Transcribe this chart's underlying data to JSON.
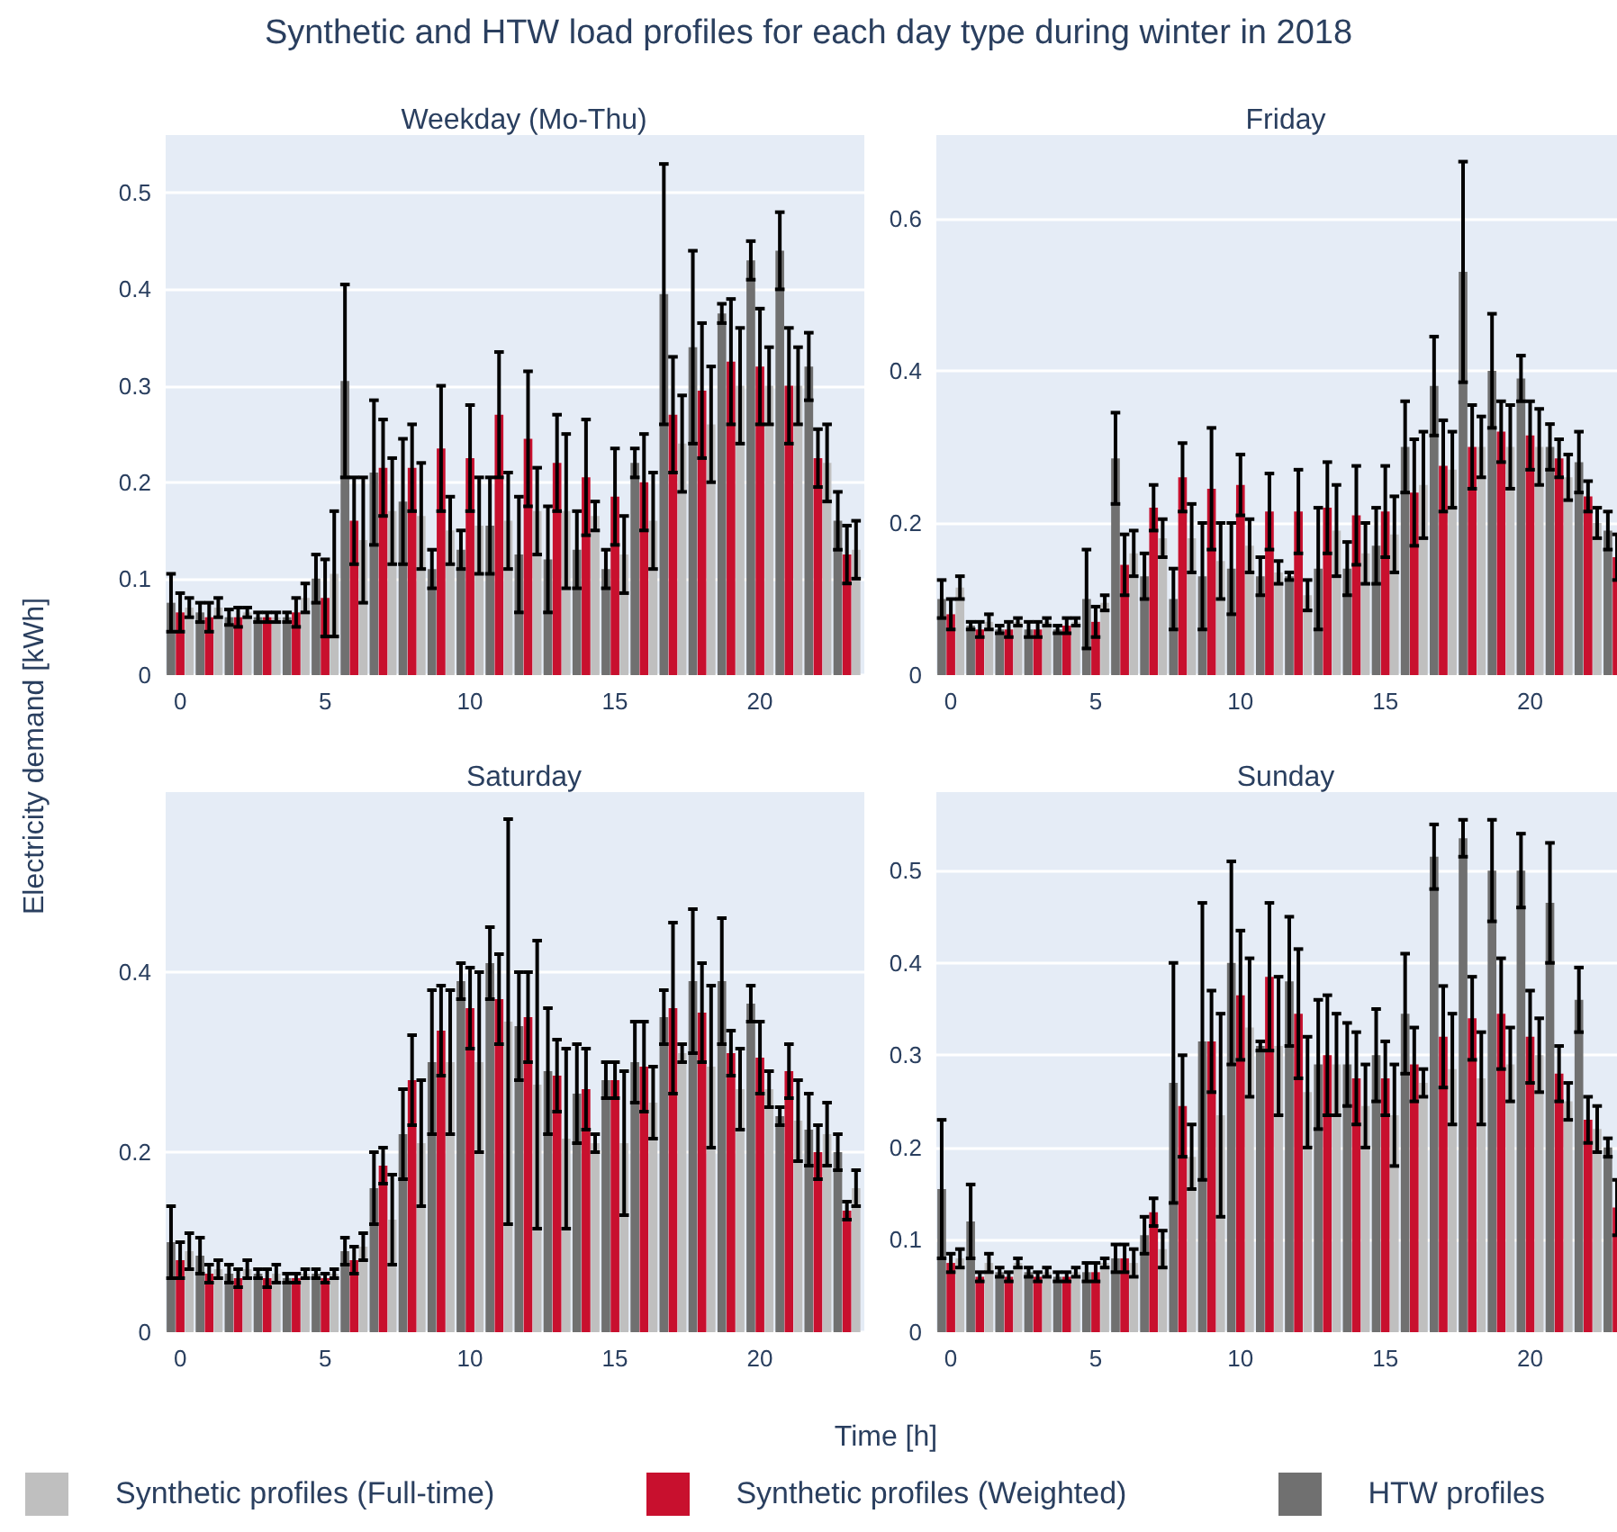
{
  "chart_data": [
    {
      "type": "bar",
      "title": "Weekday (Mo-Thu)",
      "annotations": [
        "Synthetic and HTW load profiles for each day type during winter in 2018"
      ],
      "ylabel": "Electricity demand [kWh]",
      "legend": "bottom",
      "grid": "y",
      "x": [
        0,
        1,
        2,
        3,
        4,
        5,
        6,
        7,
        8,
        9,
        10,
        11,
        12,
        13,
        14,
        15,
        16,
        17,
        18,
        19,
        20,
        21,
        22,
        23
      ],
      "xlim": [
        -0.5,
        23.6
      ],
      "xticks": [
        0,
        5,
        10,
        15,
        20
      ],
      "ylim": [
        0,
        0.56
      ],
      "yticks": [
        0,
        0.1,
        0.2,
        0.3,
        0.4,
        0.5
      ],
      "series": [
        {
          "name": "Synthetic profiles (Full-time)",
          "color": "#bfbfbf",
          "values": [
            0.07,
            0.07,
            0.065,
            0.06,
            0.08,
            0.105,
            0.14,
            0.17,
            0.165,
            0.15,
            0.155,
            0.16,
            0.17,
            0.17,
            0.165,
            0.125,
            0.16,
            0.24,
            0.26,
            0.3,
            0.3,
            0.3,
            0.22,
            0.13
          ],
          "errors": [
            0.01,
            0.01,
            0.005,
            0.005,
            0.015,
            0.065,
            0.065,
            0.055,
            0.055,
            0.035,
            0.05,
            0.05,
            0.045,
            0.08,
            0.015,
            0.04,
            0.05,
            0.05,
            0.06,
            0.06,
            0.04,
            0.04,
            0.04,
            0.03
          ]
        },
        {
          "name": "Synthetic profiles (Weighted)",
          "color": "#c8102e",
          "values": [
            0.065,
            0.06,
            0.06,
            0.06,
            0.065,
            0.08,
            0.16,
            0.215,
            0.215,
            0.235,
            0.225,
            0.27,
            0.245,
            0.22,
            0.205,
            0.185,
            0.2,
            0.27,
            0.295,
            0.325,
            0.32,
            0.3,
            0.225,
            0.125
          ],
          "errors": [
            0.02,
            0.015,
            0.01,
            0.005,
            0.015,
            0.04,
            0.045,
            0.05,
            0.045,
            0.065,
            0.055,
            0.065,
            0.07,
            0.05,
            0.06,
            0.05,
            0.05,
            0.06,
            0.07,
            0.065,
            0.06,
            0.06,
            0.03,
            0.03
          ]
        },
        {
          "name": "HTW profiles",
          "color": "#707070",
          "values": [
            0.075,
            0.065,
            0.06,
            0.06,
            0.06,
            0.1,
            0.305,
            0.21,
            0.18,
            0.11,
            0.13,
            0.155,
            0.125,
            0.12,
            0.13,
            0.11,
            0.22,
            0.395,
            0.34,
            0.375,
            0.43,
            0.44,
            0.32,
            0.16
          ],
          "errors": [
            0.03,
            0.01,
            0.008,
            0.005,
            0.005,
            0.025,
            0.1,
            0.075,
            0.065,
            0.02,
            0.02,
            0.05,
            0.06,
            0.055,
            0.04,
            0.02,
            0.015,
            0.135,
            0.1,
            0.01,
            0.02,
            0.04,
            0.035,
            0.03
          ]
        }
      ]
    },
    {
      "type": "bar",
      "title": "Friday",
      "grid": "y",
      "x": [
        0,
        1,
        2,
        3,
        4,
        5,
        6,
        7,
        8,
        9,
        10,
        11,
        12,
        13,
        14,
        15,
        16,
        17,
        18,
        19,
        20,
        21,
        22,
        23
      ],
      "xlim": [
        -0.5,
        23.0
      ],
      "xticks": [
        0,
        5,
        10,
        15,
        20
      ],
      "ylim": [
        0,
        0.71
      ],
      "yticks": [
        0,
        0.2,
        0.4,
        0.6
      ],
      "series": [
        {
          "color": "#bfbfbf",
          "values": [
            0.115,
            0.07,
            0.07,
            0.07,
            0.07,
            0.095,
            0.16,
            0.18,
            0.18,
            0.15,
            0.17,
            0.135,
            0.105,
            0.19,
            0.16,
            0.185,
            0.25,
            0.27,
            0.3,
            0.3,
            0.3,
            0.26,
            0.2,
            null
          ],
          "errors": [
            0.015,
            0.01,
            0.005,
            0.005,
            0.005,
            0.01,
            0.03,
            0.025,
            0.045,
            0.05,
            0.035,
            0.015,
            0.02,
            0.06,
            0.04,
            0.05,
            0.07,
            0.05,
            0.04,
            0.055,
            0.05,
            0.03,
            0.02,
            null
          ]
        },
        {
          "color": "#c8102e",
          "values": [
            0.08,
            0.06,
            0.06,
            0.06,
            0.065,
            0.07,
            0.145,
            0.22,
            0.26,
            0.245,
            0.25,
            0.215,
            0.215,
            0.22,
            0.21,
            0.215,
            0.24,
            0.275,
            0.3,
            0.32,
            0.315,
            0.285,
            0.235,
            0.155
          ],
          "errors": [
            0.02,
            0.01,
            0.01,
            0.01,
            0.01,
            0.02,
            0.04,
            0.03,
            0.045,
            0.08,
            0.04,
            0.05,
            0.055,
            0.06,
            0.065,
            0.06,
            0.07,
            0.06,
            0.055,
            0.04,
            0.045,
            0.025,
            0.02,
            0.03
          ]
        },
        {
          "color": "#707070",
          "values": [
            0.1,
            0.065,
            0.06,
            0.06,
            0.06,
            0.1,
            0.285,
            0.13,
            0.1,
            0.13,
            0.14,
            0.13,
            0.13,
            0.14,
            0.14,
            0.17,
            0.3,
            0.38,
            0.53,
            0.4,
            0.39,
            0.3,
            0.28,
            0.19
          ],
          "errors": [
            0.025,
            0.005,
            0.005,
            0.01,
            0.005,
            0.065,
            0.06,
            0.03,
            0.04,
            0.07,
            0.06,
            0.025,
            0.005,
            0.08,
            0.035,
            0.05,
            0.06,
            0.065,
            0.145,
            0.075,
            0.03,
            0.03,
            0.04,
            0.025
          ]
        }
      ]
    },
    {
      "type": "bar",
      "title": "Saturday",
      "xlabel": "Time [h]",
      "grid": "y",
      "x": [
        0,
        1,
        2,
        3,
        4,
        5,
        6,
        7,
        8,
        9,
        10,
        11,
        12,
        13,
        14,
        15,
        16,
        17,
        18,
        19,
        20,
        21,
        22,
        23
      ],
      "xlim": [
        -0.5,
        23.6
      ],
      "xticks": [
        0,
        5,
        10,
        15,
        20
      ],
      "ylim": [
        0,
        0.6
      ],
      "yticks": [
        0,
        0.2,
        0.4
      ],
      "series": [
        {
          "color": "#bfbfbf",
          "values": [
            0.09,
            0.07,
            0.07,
            0.065,
            0.065,
            0.065,
            0.095,
            0.125,
            0.21,
            0.3,
            0.3,
            0.345,
            0.275,
            0.215,
            0.21,
            0.21,
            0.255,
            0.31,
            0.295,
            0.27,
            0.27,
            0.235,
            0.22,
            0.16
          ],
          "errors": [
            0.02,
            0.01,
            0.01,
            0.01,
            0.005,
            0.005,
            0.015,
            0.05,
            0.07,
            0.08,
            0.1,
            0.225,
            0.16,
            0.1,
            0.01,
            0.08,
            0.04,
            0.01,
            0.09,
            0.045,
            0.02,
            0.045,
            0.035,
            0.02
          ]
        },
        {
          "color": "#c8102e",
          "values": [
            0.08,
            0.065,
            0.06,
            0.06,
            0.06,
            0.06,
            0.08,
            0.185,
            0.28,
            0.335,
            0.36,
            0.37,
            0.35,
            0.285,
            0.27,
            0.28,
            0.295,
            0.36,
            0.355,
            0.31,
            0.305,
            0.29,
            0.2,
            0.135
          ],
          "errors": [
            0.02,
            0.01,
            0.01,
            0.01,
            0.005,
            0.005,
            0.015,
            0.02,
            0.05,
            0.05,
            0.045,
            0.05,
            0.05,
            0.04,
            0.045,
            0.02,
            0.05,
            0.095,
            0.055,
            0.025,
            0.04,
            0.03,
            0.03,
            0.01
          ]
        },
        {
          "color": "#707070",
          "values": [
            0.1,
            0.085,
            0.065,
            0.065,
            0.06,
            0.065,
            0.09,
            0.16,
            0.22,
            0.3,
            0.39,
            0.41,
            0.34,
            0.29,
            0.265,
            0.28,
            0.3,
            0.35,
            0.39,
            0.39,
            0.365,
            0.24,
            0.225,
            0.2
          ],
          "errors": [
            0.04,
            0.02,
            0.01,
            0.005,
            0.005,
            0.005,
            0.015,
            0.04,
            0.05,
            0.08,
            0.02,
            0.04,
            0.06,
            0.07,
            0.055,
            0.02,
            0.045,
            0.03,
            0.08,
            0.07,
            0.02,
            0.01,
            0.04,
            0.02
          ]
        }
      ]
    },
    {
      "type": "bar",
      "title": "Sunday",
      "grid": "y",
      "x": [
        0,
        1,
        2,
        3,
        4,
        5,
        6,
        7,
        8,
        9,
        10,
        11,
        12,
        13,
        14,
        15,
        16,
        17,
        18,
        19,
        20,
        21,
        22,
        23
      ],
      "xlim": [
        -0.5,
        23.0
      ],
      "xticks": [
        0,
        5,
        10,
        15,
        20
      ],
      "ylim": [
        0,
        0.585
      ],
      "yticks": [
        0,
        0.1,
        0.2,
        0.3,
        0.4,
        0.5
      ],
      "series": [
        {
          "color": "#bfbfbf",
          "values": [
            0.08,
            0.075,
            0.075,
            0.065,
            0.065,
            0.075,
            0.075,
            0.09,
            0.19,
            0.235,
            0.33,
            0.31,
            0.26,
            0.29,
            0.245,
            0.235,
            0.27,
            0.285,
            0.275,
            0.29,
            0.3,
            0.25,
            0.22,
            null
          ],
          "errors": [
            0.01,
            0.01,
            0.005,
            0.005,
            0.005,
            0.005,
            0.015,
            0.02,
            0.035,
            0.11,
            0.075,
            0.075,
            0.06,
            0.055,
            0.045,
            0.055,
            0.015,
            0.06,
            0.05,
            0.04,
            0.04,
            0.02,
            0.025,
            null
          ]
        },
        {
          "color": "#c8102e",
          "values": [
            0.075,
            0.06,
            0.06,
            0.06,
            0.06,
            0.065,
            0.08,
            0.13,
            0.245,
            0.315,
            0.365,
            0.385,
            0.345,
            0.3,
            0.275,
            0.275,
            0.29,
            0.32,
            0.34,
            0.345,
            0.32,
            0.28,
            0.23,
            0.135
          ],
          "errors": [
            0.01,
            0.005,
            0.005,
            0.005,
            0.005,
            0.01,
            0.015,
            0.015,
            0.055,
            0.055,
            0.07,
            0.08,
            0.07,
            0.065,
            0.05,
            0.04,
            0.04,
            0.055,
            0.045,
            0.06,
            0.05,
            0.03,
            0.025,
            0.03
          ]
        },
        {
          "color": "#707070",
          "values": [
            0.155,
            0.12,
            0.065,
            0.065,
            0.06,
            0.065,
            0.08,
            0.105,
            0.27,
            0.315,
            0.4,
            0.31,
            0.38,
            0.29,
            0.29,
            0.3,
            0.345,
            0.515,
            0.535,
            0.5,
            0.5,
            0.465,
            0.36,
            0.2
          ],
          "errors": [
            0.075,
            0.04,
            0.005,
            0.005,
            0.005,
            0.01,
            0.015,
            0.02,
            0.13,
            0.15,
            0.11,
            0.005,
            0.07,
            0.07,
            0.045,
            0.05,
            0.065,
            0.035,
            0.02,
            0.055,
            0.04,
            0.065,
            0.035,
            0.01
          ]
        }
      ]
    }
  ]
}
